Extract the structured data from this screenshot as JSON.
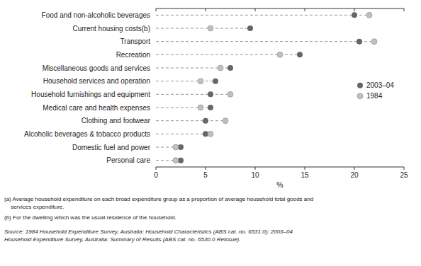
{
  "chart_data": {
    "type": "dot",
    "orientation": "horizontal",
    "categories": [
      "Food and non-alcoholic beverages",
      "Current housing costs(b)",
      "Transport",
      "Recreation",
      "Miscellaneous goods and services",
      "Household services and operation",
      "Household furnishings and equipment",
      "Medical care and health expenses",
      "Clothing and footwear",
      "Alcoholic beverages & tobacco products",
      "Domestic fuel and power",
      "Personal care"
    ],
    "series": [
      {
        "name": "2003–04",
        "color": "#666666",
        "marker": "circle",
        "values": [
          20.0,
          9.5,
          20.5,
          14.5,
          7.5,
          6.0,
          5.5,
          5.5,
          5.0,
          5.0,
          2.5,
          2.5
        ]
      },
      {
        "name": "1984",
        "color": "#c0c0c0",
        "marker": "circle",
        "values": [
          21.5,
          5.5,
          22.0,
          12.5,
          6.5,
          4.5,
          7.5,
          4.5,
          7.0,
          5.5,
          2.0,
          2.0
        ]
      }
    ],
    "xlabel": "%",
    "xlim": [
      0,
      25
    ],
    "xticks": [
      0,
      5,
      10,
      15,
      20,
      25
    ],
    "grid": false,
    "legend": "right",
    "annotations": [
      "(a) Average household expenditure on each broad expenditure group as a proportion of average household total goods and\n    services expenditure.",
      "(b) For the dwelling which was the usual residence of the household.",
      "Source: 1984 Household Expenditure Survey, Australia: Household Characteristics (ABS cat. no. 6531.0); 2003–04\nHousehold Expenditure Survey, Australia: Summary of Results (ABS cat. no. 6530.0 Reissue)."
    ]
  }
}
